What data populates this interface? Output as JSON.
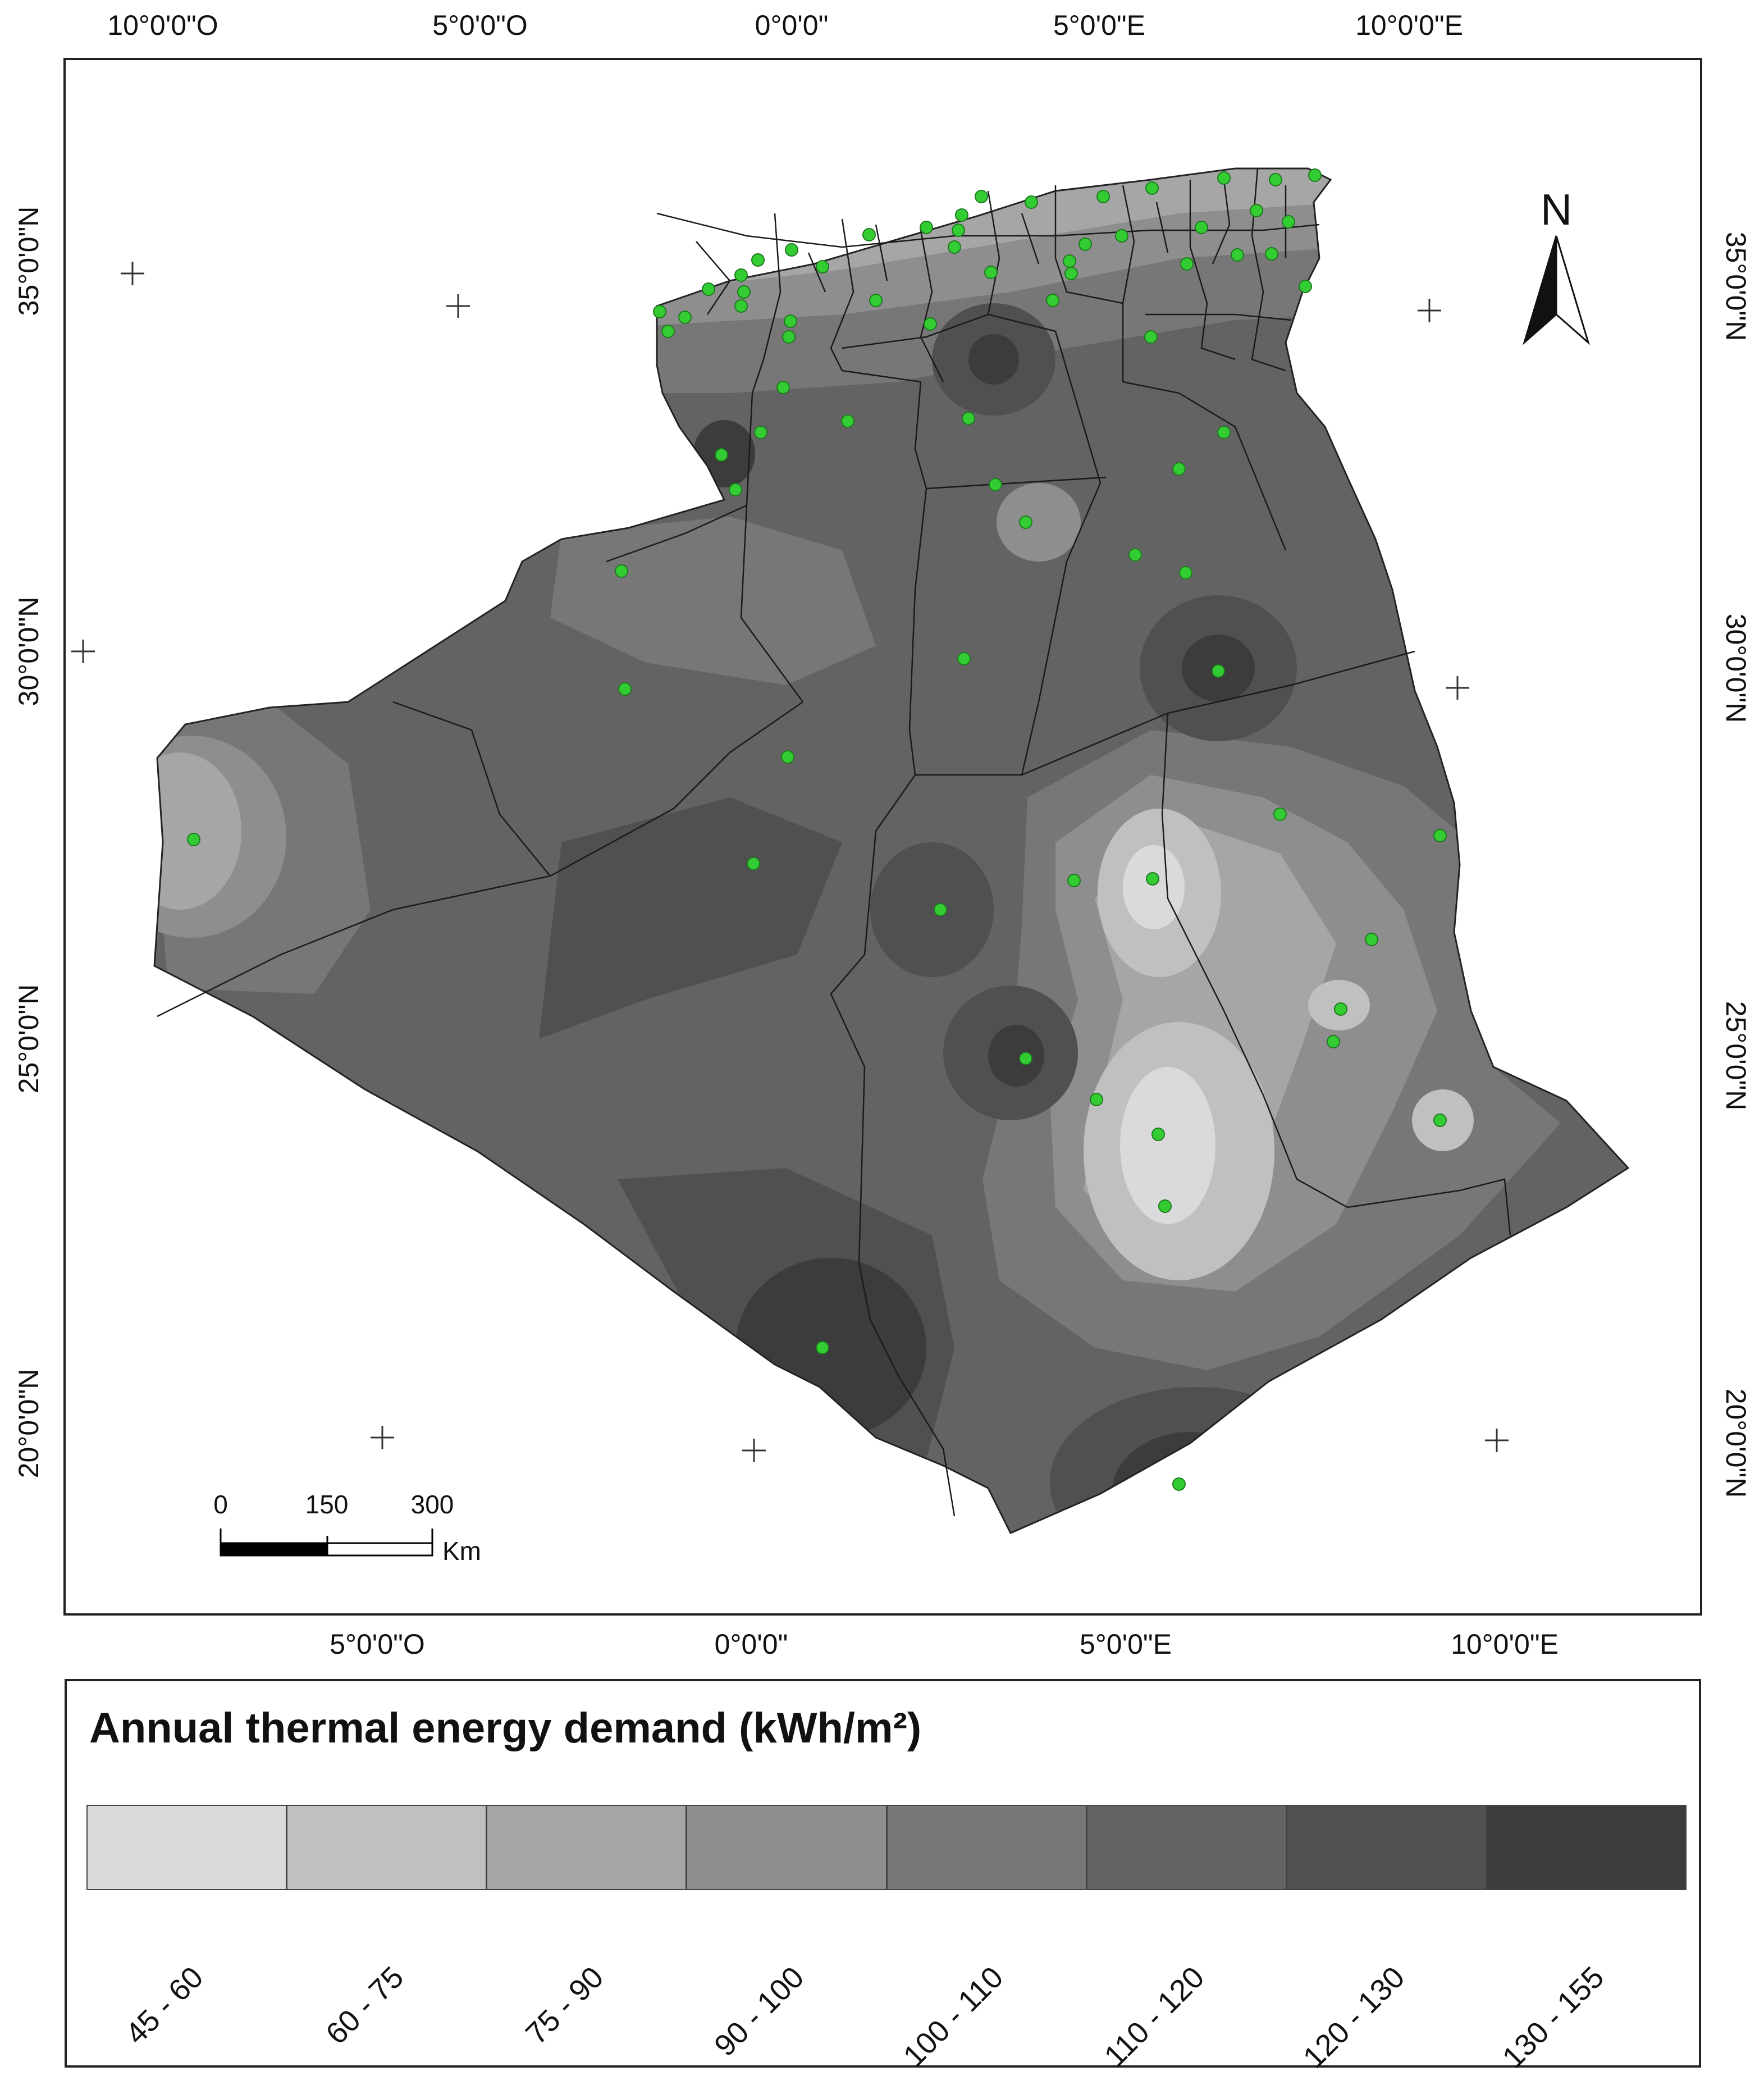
{
  "map": {
    "top_lon_labels": [
      "10°0'0\"O",
      "5°0'0\"O",
      "0°0'0\"",
      "5°0'0\"E",
      "10°0'0\"E"
    ],
    "bottom_lon_labels": [
      "5°0'0\"O",
      "0°0'0\"",
      "5°0'0\"E",
      "10°0'0\"E"
    ],
    "left_lat_labels": [
      "35°0'0\"N",
      "30°0'0\"N",
      "25°0'0\"N",
      "20°0'0\"N"
    ],
    "right_lat_labels": [
      "35°0'0\"N",
      "30°0'0\"N",
      "25°0'0\"N",
      "20°0'0\"N"
    ],
    "north_arrow_label": "N",
    "scale_bar": {
      "ticks": [
        "0",
        "150",
        "300"
      ],
      "unit": "Km"
    },
    "station_color": "#33cc33",
    "station_count": 68
  },
  "legend": {
    "title": "Annual thermal energy demand (kWh/m²)",
    "classes": [
      {
        "label": "45 - 60",
        "color": "#dadada"
      },
      {
        "label": "60 - 75",
        "color": "#c0c0c0"
      },
      {
        "label": "75 - 90",
        "color": "#a6a6a6"
      },
      {
        "label": "90 - 100",
        "color": "#8e8e8e"
      },
      {
        "label": "100 - 110",
        "color": "#777777"
      },
      {
        "label": "110 - 120",
        "color": "#636363"
      },
      {
        "label": "120 - 130",
        "color": "#505050"
      },
      {
        "label": "130 - 155",
        "color": "#3c3c3c"
      }
    ]
  }
}
